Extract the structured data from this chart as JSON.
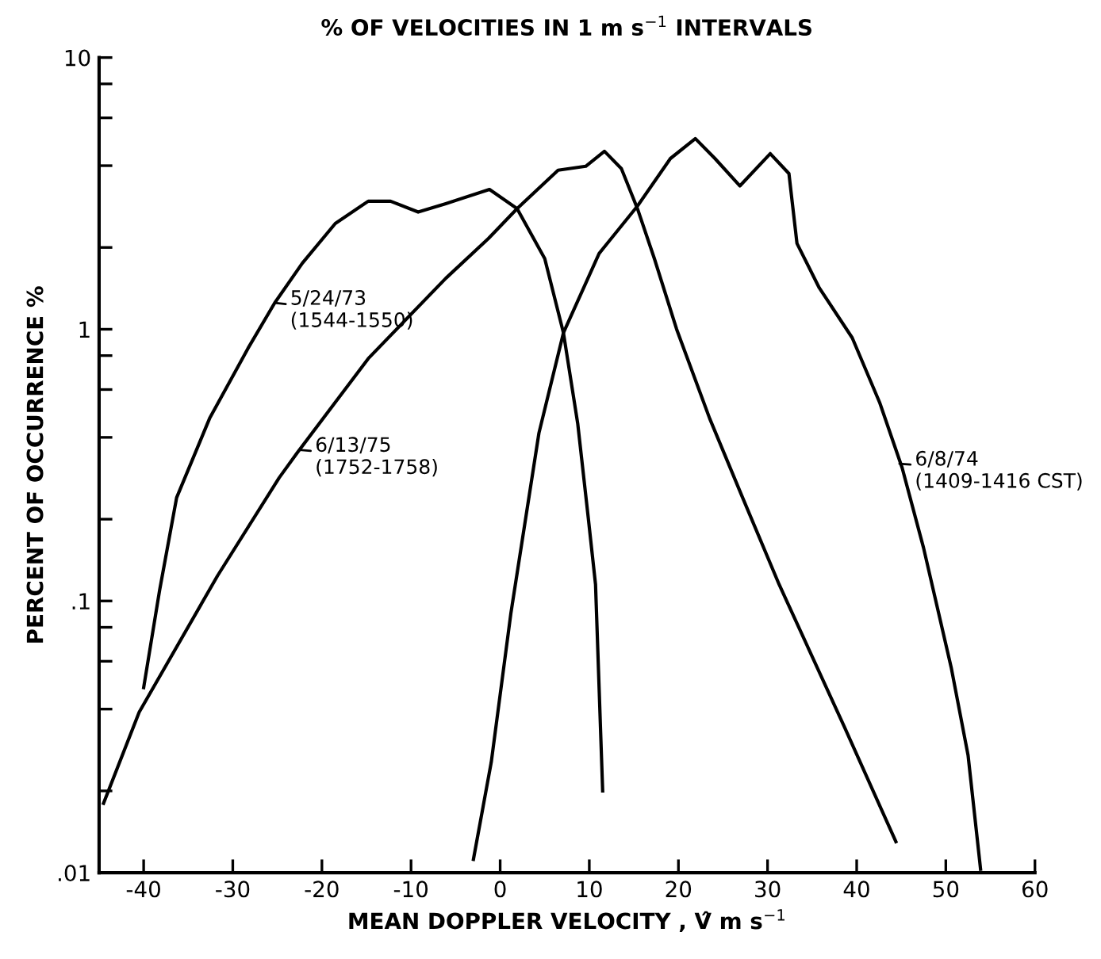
{
  "chart_data": {
    "type": "line",
    "title": "% OF VELOCITIES IN 1 m s$^{−1}$ INTERVALS",
    "xlabel": "MEAN DOPPLER VELOCITY , V̂ m s$^{−1}$",
    "ylabel": "PERCENT OF OCCURRENCE %",
    "log": "y",
    "xlim": [
      -45,
      60
    ],
    "ylim": [
      0.01,
      10
    ],
    "xticks": [
      -40,
      -30,
      -20,
      -10,
      0,
      10,
      20,
      30,
      40,
      50,
      60
    ],
    "yticks": [
      {
        "value": 0.01,
        "label": ".01"
      },
      {
        "value": 0.02,
        "label": null
      },
      {
        "value": 0.04,
        "label": null
      },
      {
        "value": 0.06,
        "label": null
      },
      {
        "value": 0.08,
        "label": null
      },
      {
        "value": 0.1,
        "label": ".1"
      },
      {
        "value": 0.2,
        "label": null
      },
      {
        "value": 0.4,
        "label": null
      },
      {
        "value": 0.6,
        "label": null
      },
      {
        "value": 0.8,
        "label": null
      },
      1,
      {
        "value": 2,
        "label": null
      },
      {
        "value": 4,
        "label": null
      },
      {
        "value": 6,
        "label": null
      },
      {
        "value": 8,
        "label": null
      },
      10
    ],
    "grid": false,
    "legend": false,
    "marker": "none",
    "line_style": "solid",
    "series": [
      {
        "color": "#000000",
        "x": [
          -40,
          -38.2,
          -36.3,
          -32.6,
          -28.3,
          -25.3,
          -22.2,
          -18.5,
          -14.8,
          -12.3,
          -9.2,
          -6.1,
          -1.2,
          1.9,
          5.0,
          7.1,
          8.7,
          9.9,
          10.7,
          11.5
        ],
        "values": [
          0.048,
          0.11,
          0.24,
          0.47,
          0.85,
          1.25,
          1.75,
          2.45,
          2.96,
          2.96,
          2.7,
          2.9,
          3.27,
          2.78,
          1.82,
          0.97,
          0.45,
          0.2,
          0.115,
          0.02
        ]
      },
      {
        "color": "#000000",
        "x": [
          -44.5,
          -40.5,
          -31.7,
          -24.8,
          -22.8,
          -14.8,
          -6.1,
          -1.3,
          1.9,
          6.5,
          9.6,
          11.7,
          13.6,
          15.4,
          17.3,
          19.8,
          23.5,
          27.2,
          31.3,
          38.6,
          44.4
        ],
        "values": [
          0.018,
          0.039,
          0.124,
          0.284,
          0.35,
          0.78,
          1.54,
          2.16,
          2.78,
          3.85,
          3.98,
          4.52,
          3.9,
          2.78,
          1.82,
          1.0,
          0.47,
          0.24,
          0.115,
          0.0345,
          0.013
        ]
      },
      {
        "color": "#000000",
        "x": [
          -3.0,
          -1.0,
          1.2,
          4.35,
          7.1,
          11.1,
          15.4,
          19.1,
          21.9,
          24.1,
          26.9,
          30.3,
          32.4,
          33.3,
          35.8,
          39.5,
          42.6,
          45.1,
          47.5,
          50.6,
          52.5,
          53.9
        ],
        "values": [
          0.0112,
          0.0255,
          0.09,
          0.415,
          0.97,
          1.9,
          2.84,
          4.25,
          5.03,
          4.25,
          3.37,
          4.43,
          3.74,
          2.07,
          1.42,
          0.93,
          0.535,
          0.309,
          0.157,
          0.057,
          0.027,
          0.0103
        ]
      }
    ],
    "annotations": [
      {
        "text": "5/24/73\n(1544-1550)",
        "x": -25.3,
        "y": 1.25
      },
      {
        "text": "6/13/75\n(1752-1758)",
        "x": -22.5,
        "y": 0.36
      },
      {
        "text": "6/8/74\n(1409-1416 CST)",
        "x": 44.8,
        "y": 0.32
      }
    ]
  }
}
